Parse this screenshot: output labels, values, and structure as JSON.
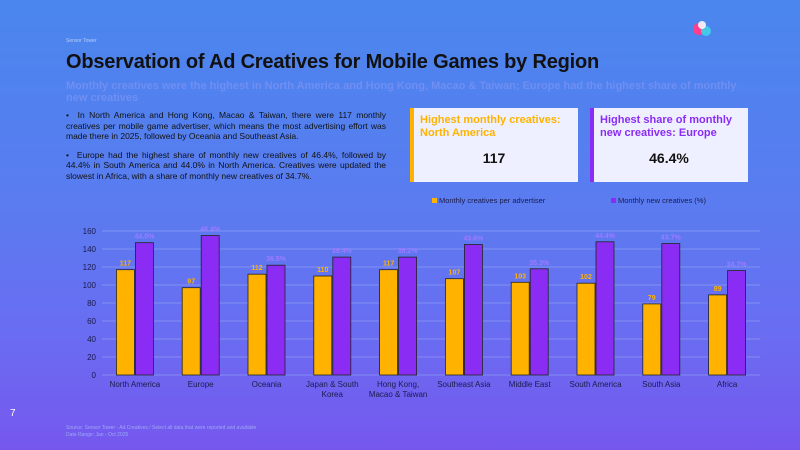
{
  "slide": {
    "logo_text": "Sensor Tower",
    "title": "Observation of Ad Creatives for Mobile Games by Region",
    "subtitle": "Monthly creatives were the highest in North America and Hong Kong, Macao & Taiwan; Europe had the highest share of monthly new creatives",
    "bullets": [
      "In North America and Hong Kong, Macao & Taiwan, there were 117 monthly creatives per mobile game advertiser, which means the most advertising effort was made there in 2025, followed by Oceania and Southeast Asia.",
      "Europe had the highest share of monthly new creatives of 46.4%, followed by 44.4% in South America and 44.0% in North America. Creatives were updated the slowest in Africa, with a share of monthly new creatives of 34.7%."
    ],
    "cards": [
      {
        "title": "Highest monthly creatives: North America",
        "value": "117",
        "color": "#ffb300"
      },
      {
        "title": "Highest share of monthly new creatives: Europe",
        "value": "46.4%",
        "color": "#8b2cf5"
      }
    ],
    "page_number": "7",
    "footer": "Source: Sensor Tower - Ad Creatives / Select all data that were reported and available\nDate Range: Jan - Oct 2025"
  },
  "chart_data": {
    "type": "bar",
    "categories": [
      "North America",
      "Europe",
      "Oceania",
      "Japan & South Korea",
      "Hong Kong, Macao & Taiwan",
      "Southeast Asia",
      "Middle East",
      "South America",
      "South Asia",
      "Africa"
    ],
    "series": [
      {
        "name": "Monthly creatives per advertiser",
        "color": "#ffb300",
        "values": [
          117,
          97,
          112,
          110,
          117,
          107,
          103,
          102,
          79,
          89
        ],
        "labels": [
          "117",
          "97",
          "112",
          "110",
          "117",
          "107",
          "103",
          "102",
          "79",
          "89"
        ]
      },
      {
        "name": "Monthly new creatives (%)",
        "color": "#8b2cf5",
        "values": [
          147,
          155,
          122,
          131,
          131,
          145,
          118,
          148,
          146,
          116
        ],
        "labels": [
          "44.0%",
          "46.4%",
          "36.5%",
          "39.4%",
          "39.2%",
          "43.6%",
          "35.3%",
          "44.4%",
          "43.7%",
          "34.7%"
        ]
      }
    ],
    "yticks": [
      0,
      20,
      40,
      60,
      80,
      100,
      120,
      140,
      160
    ],
    "ylim": [
      0,
      160
    ],
    "grid": true,
    "legend_position": "top"
  }
}
